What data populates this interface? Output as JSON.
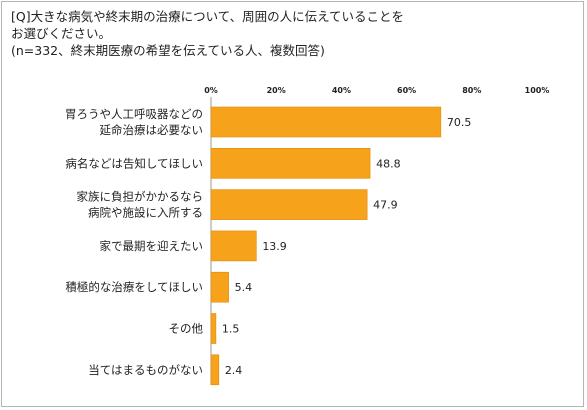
{
  "question": {
    "line1": "[Q]大きな病気や終末期の治療について、周囲の人に伝えていることを",
    "line2": "お選びください。",
    "line3": "(n=332、終末期医療の希望を伝えている人、複数回答)"
  },
  "chart_data": {
    "type": "bar",
    "orientation": "horizontal",
    "categories": [
      [
        "胃ろうや人工呼吸器などの",
        "延命治療は必要ない"
      ],
      [
        "病名などは告知してほしい"
      ],
      [
        "家族に負担がかかるなら",
        "病院や施設に入所する"
      ],
      [
        "家で最期を迎えたい"
      ],
      [
        "積極的な治療をしてほしい"
      ],
      [
        "その他"
      ],
      [
        "当てはまるものがない"
      ]
    ],
    "values": [
      70.5,
      48.8,
      47.9,
      13.9,
      5.4,
      1.5,
      2.4
    ],
    "value_labels": [
      "70.5",
      "48.8",
      "47.9",
      "13.9",
      "5.4",
      "1.5",
      "2.4"
    ],
    "xlim": [
      0,
      100
    ],
    "ticks": [
      0,
      20,
      40,
      60,
      80,
      100
    ],
    "tick_labels": [
      "0%",
      "20%",
      "40%",
      "60%",
      "80%",
      "100%"
    ],
    "grid": false,
    "legend": "none",
    "colors": {
      "bar": "#f7a21b",
      "bar_stroke": "#e08a0a",
      "axis": "#9a9a9a"
    }
  }
}
